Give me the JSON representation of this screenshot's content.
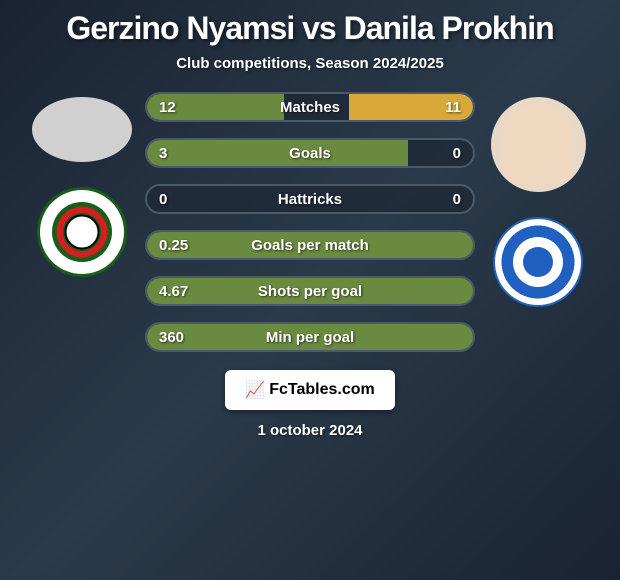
{
  "title": "Gerzino Nyamsi vs Danila Prokhin",
  "subtitle": "Club competitions, Season 2024/2025",
  "colors": {
    "left_bar": "#6a8a40",
    "right_bar": "#d8a838",
    "bar_border": "#4a5a6a",
    "text": "#ffffff"
  },
  "stats": [
    {
      "label": "Matches",
      "left_val": "12",
      "right_val": "11",
      "left_pct": 42,
      "right_pct": 38
    },
    {
      "label": "Goals",
      "left_val": "3",
      "right_val": "0",
      "left_pct": 80,
      "right_pct": 0
    },
    {
      "label": "Hattricks",
      "left_val": "0",
      "right_val": "0",
      "left_pct": 0,
      "right_pct": 0
    },
    {
      "label": "Goals per match",
      "left_val": "0.25",
      "right_val": "",
      "left_pct": 100,
      "right_pct": 0
    },
    {
      "label": "Shots per goal",
      "left_val": "4.67",
      "right_val": "",
      "left_pct": 100,
      "right_pct": 0
    },
    {
      "label": "Min per goal",
      "left_val": "360",
      "right_val": "",
      "left_pct": 100,
      "right_pct": 0
    }
  ],
  "footer": {
    "brand": "FcTables.com",
    "date": "1 october 2024"
  }
}
